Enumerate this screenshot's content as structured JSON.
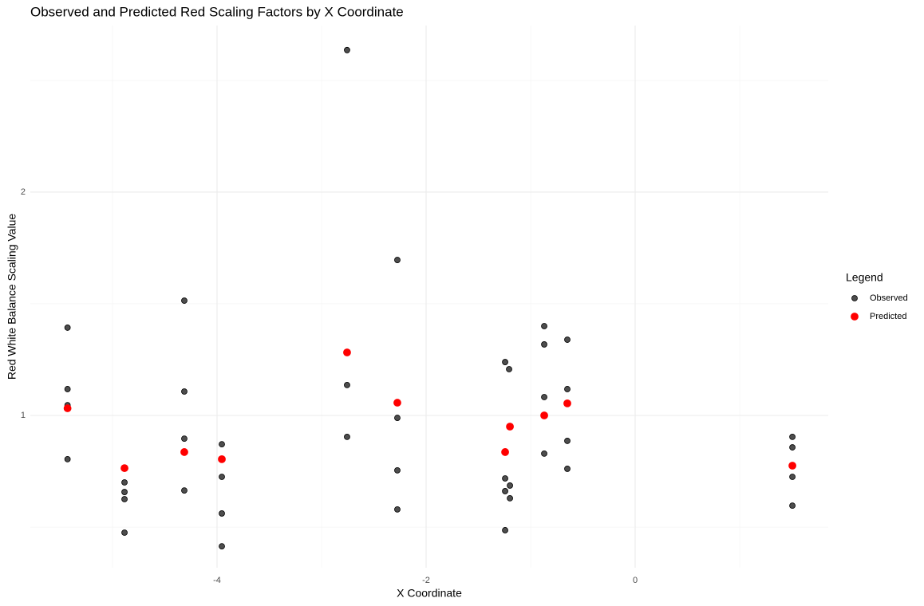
{
  "chart_data": {
    "type": "scatter",
    "title": "Observed and Predicted Red Scaling Factors by X Coordinate",
    "x_label": "X Coordinate",
    "y_label": "Red White Balance Scaling Value",
    "legend_title": "Legend",
    "legend_position": "right",
    "grid": true,
    "xlim": [
      -5.786,
      1.847
    ],
    "xticks": [
      -4,
      -2,
      0
    ],
    "xminor": [
      -5,
      -3,
      -1,
      1
    ],
    "ylim": [
      0.318,
      2.746
    ],
    "yticks": [
      1,
      2
    ],
    "yminor": [
      0.5,
      1.5,
      2.5
    ],
    "series": [
      {
        "name": "Observed",
        "color": "#4d4d4d",
        "x": [
          -5.43,
          -5.43,
          -5.43,
          -5.43,
          -4.885,
          -4.885,
          -4.885,
          -4.885,
          -4.313,
          -4.313,
          -4.313,
          -4.313,
          -3.954,
          -3.954,
          -3.954,
          -3.954,
          -2.756,
          -2.756,
          -2.756,
          -2.275,
          -2.275,
          -2.275,
          -2.275,
          -1.244,
          -1.244,
          -1.244,
          -1.244,
          -1.206,
          -1.198,
          -1.198,
          -0.87,
          -0.87,
          -0.87,
          -0.87,
          -0.649,
          -0.649,
          -0.649,
          -0.649,
          1.504,
          1.504,
          1.504,
          1.504
        ],
        "values": [
          1.393,
          1.118,
          1.046,
          0.804,
          0.7,
          0.657,
          0.625,
          0.475,
          1.514,
          1.107,
          0.896,
          0.664,
          0.871,
          0.725,
          0.561,
          0.414,
          2.636,
          1.136,
          0.904,
          1.696,
          0.989,
          0.754,
          0.579,
          1.239,
          0.718,
          0.661,
          0.486,
          1.207,
          0.686,
          0.629,
          1.4,
          1.318,
          1.082,
          0.829,
          1.339,
          1.118,
          0.886,
          0.761,
          0.904,
          0.857,
          0.725,
          0.596
        ]
      },
      {
        "name": "Predicted",
        "color": "#ff0000",
        "x": [
          -5.43,
          -4.885,
          -4.313,
          -3.954,
          -2.756,
          -2.275,
          -1.244,
          -1.198,
          -0.87,
          -0.649,
          1.504
        ],
        "values": [
          1.032,
          0.764,
          0.836,
          0.804,
          1.282,
          1.057,
          0.836,
          0.95,
          1.0,
          1.054,
          0.775
        ]
      }
    ]
  }
}
